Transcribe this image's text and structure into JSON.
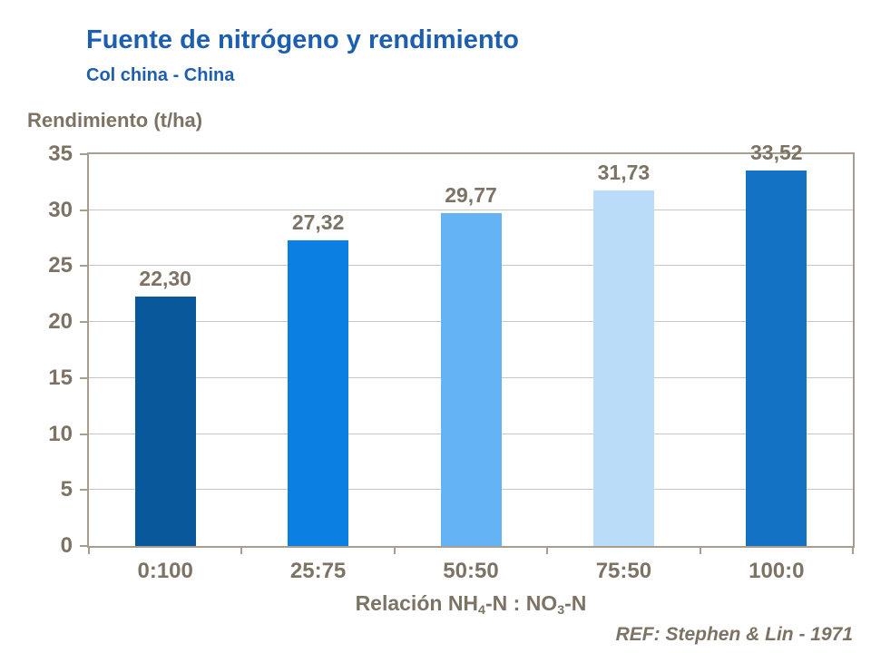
{
  "page": {
    "title": "Fuente de nitrógeno y rendimiento",
    "subtitle": "Col china - China",
    "reference": "REF: Stephen & Lin - 1971"
  },
  "colors": {
    "title_blue": "#1D5FAE",
    "label_brown": "#7D7365",
    "plot_border": "#A79E90",
    "gridline": "#C8C6C2"
  },
  "chart_data": {
    "type": "bar",
    "title": "Fuente de nitrógeno y rendimiento",
    "subtitle": "Col china - China",
    "ylabel": "Rendimiento (t/ha)",
    "xlabel": "Relación NH4-N : NO3-N",
    "xlabel_parts": [
      {
        "text": "Relación NH",
        "sub": false
      },
      {
        "text": "4",
        "sub": true
      },
      {
        "text": "-N : NO",
        "sub": false
      },
      {
        "text": "3",
        "sub": true
      },
      {
        "text": "-N",
        "sub": false
      }
    ],
    "categories": [
      "0:100",
      "25:75",
      "50:50",
      "75:50",
      "100:0"
    ],
    "values": [
      22.3,
      27.32,
      29.77,
      31.73,
      33.52
    ],
    "value_labels": [
      "22,30",
      "27,32",
      "29,77",
      "31,73",
      "33,52"
    ],
    "bar_colors": [
      "#0A589C",
      "#0C80E2",
      "#63B3F5",
      "#BADCF9",
      "#1472C4"
    ],
    "ylim": [
      0,
      35
    ],
    "yticks": [
      0,
      5,
      10,
      15,
      20,
      25,
      30,
      35
    ],
    "grid": true,
    "legend": false,
    "annotation": "REF: Stephen & Lin - 1971"
  }
}
